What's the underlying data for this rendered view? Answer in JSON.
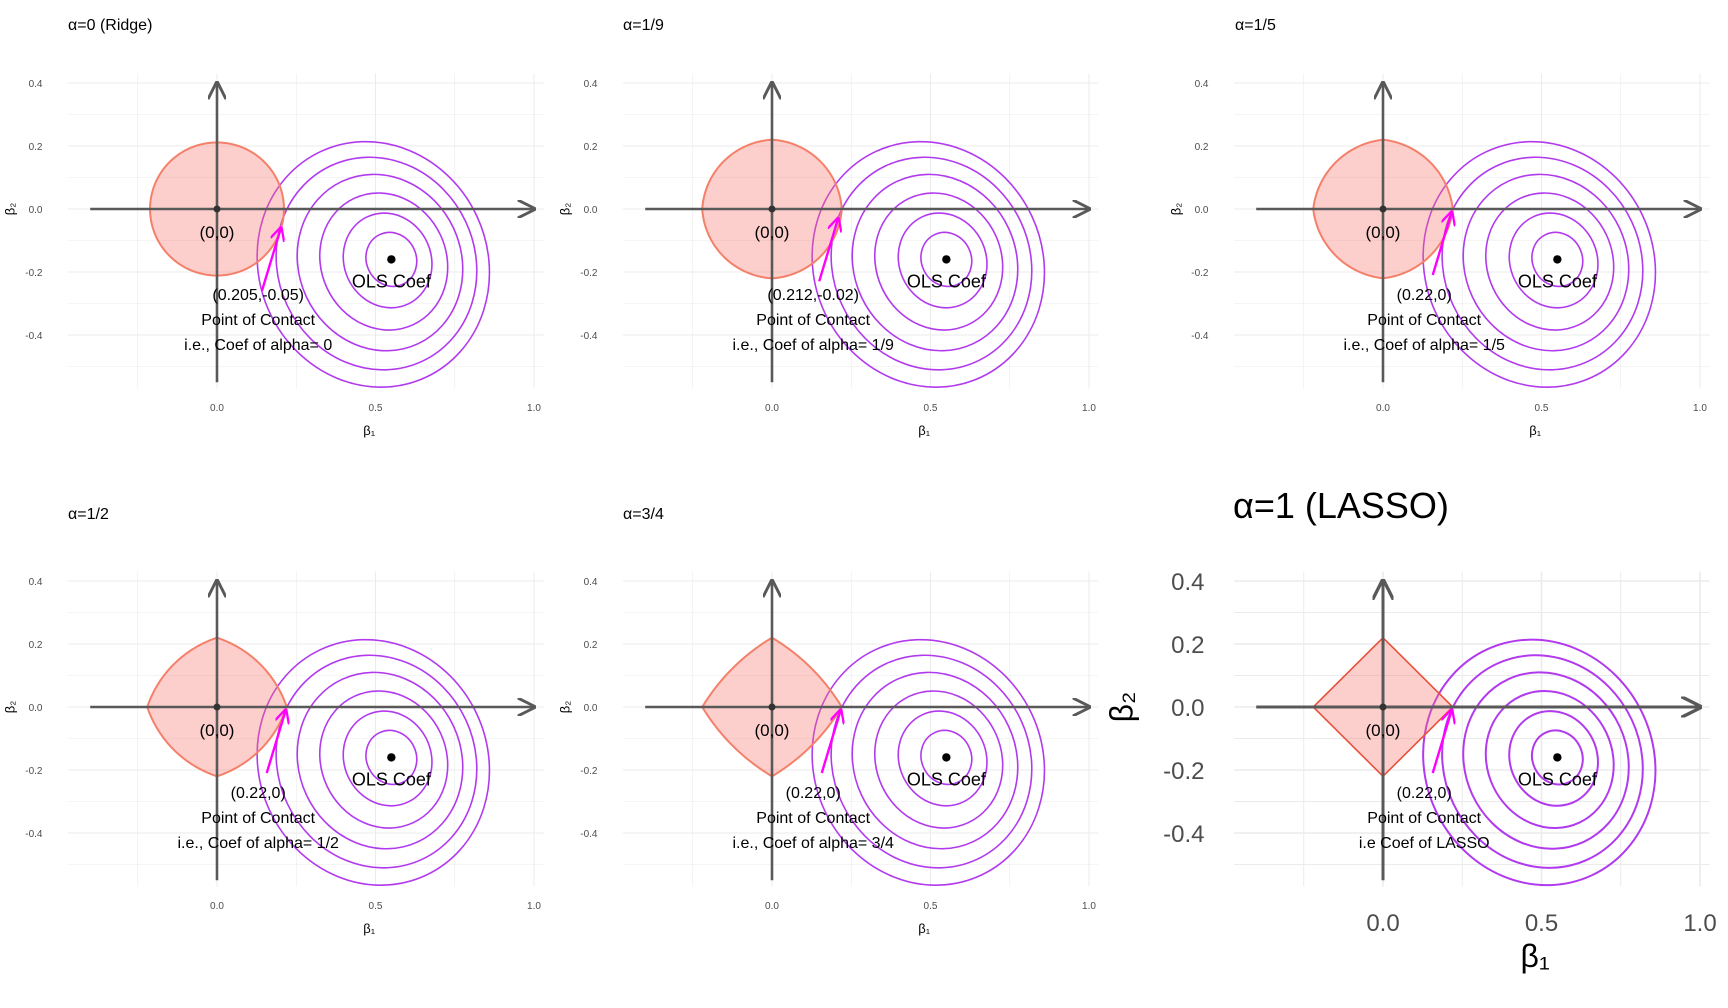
{
  "figure": {
    "background": "#ffffff"
  },
  "colors": {
    "constraint_fill": "#f8766d",
    "constraint_fill_opacity": 0.35,
    "constraint_stroke": "#f4806a",
    "lasso_stroke": "#e8503a",
    "contour_stroke": "#b23aee",
    "arrow": "#ff00ff",
    "axis_arrow": "#595959",
    "grid": "#ebebeb",
    "text": "#000000",
    "tick_text": "#4d4d4d"
  },
  "chart_data": [
    {
      "type": "scatter",
      "title": "α=0 (Ridge)",
      "xlabel": "β₁",
      "ylabel": "β₂",
      "xlim": [
        -0.5,
        1.05
      ],
      "ylim": [
        -0.55,
        0.45
      ],
      "xticks": [
        "0.0",
        "0.5",
        "1.0"
      ],
      "yticks": [
        "0.4",
        "0.2",
        "0.0",
        "-0.2",
        "-0.4"
      ],
      "alpha": 0,
      "origin_label": "(0,0)",
      "ols_point": [
        0.55,
        -0.16
      ],
      "ols_label": "OLS Coef",
      "contact_point": [
        0.205,
        -0.05
      ],
      "annotation": [
        "(0.205,-0.05)",
        "Point of Contact",
        "i.e., Coef of alpha= 0"
      ],
      "grid": true
    },
    {
      "type": "scatter",
      "title": "α=1/9",
      "xlabel": "β₁",
      "ylabel": "β₂",
      "xlim": [
        -0.5,
        1.05
      ],
      "ylim": [
        -0.55,
        0.45
      ],
      "xticks": [
        "0.0",
        "0.5",
        "1.0"
      ],
      "yticks": [
        "0.4",
        "0.2",
        "0.0",
        "-0.2",
        "-0.4"
      ],
      "alpha": 0.1111,
      "origin_label": "(0,0)",
      "ols_point": [
        0.55,
        -0.16
      ],
      "ols_label": "OLS Coef",
      "contact_point": [
        0.212,
        -0.02
      ],
      "annotation": [
        "(0.212,-0.02)",
        "Point of Contact",
        "i.e., Coef of alpha= 1/9"
      ],
      "grid": true
    },
    {
      "type": "scatter",
      "title": "α=1/5",
      "xlabel": "β₁",
      "ylabel": "β₂",
      "xlim": [
        -0.5,
        1.05
      ],
      "ylim": [
        -0.55,
        0.45
      ],
      "xticks": [
        "0.0",
        "0.5",
        "1.0"
      ],
      "yticks": [
        "0.4",
        "0.2",
        "0.0",
        "-0.2",
        "-0.4"
      ],
      "alpha": 0.2,
      "origin_label": "(0,0)",
      "ols_point": [
        0.55,
        -0.16
      ],
      "ols_label": "OLS Coef",
      "contact_point": [
        0.22,
        0
      ],
      "annotation": [
        "(0.22,0)",
        "Point of Contact",
        "i.e., Coef of alpha= 1/5"
      ],
      "grid": true
    },
    {
      "type": "scatter",
      "title": "α=1/2",
      "xlabel": "β₁",
      "ylabel": "β₂",
      "xlim": [
        -0.5,
        1.05
      ],
      "ylim": [
        -0.55,
        0.45
      ],
      "xticks": [
        "0.0",
        "0.5",
        "1.0"
      ],
      "yticks": [
        "0.4",
        "0.2",
        "0.0",
        "-0.2",
        "-0.4"
      ],
      "alpha": 0.5,
      "origin_label": "(0,0)",
      "ols_point": [
        0.55,
        -0.16
      ],
      "ols_label": "OLS Coef",
      "contact_point": [
        0.22,
        0
      ],
      "annotation": [
        "(0.22,0)",
        "Point of Contact",
        "i.e., Coef of alpha= 1/2"
      ],
      "grid": true
    },
    {
      "type": "scatter",
      "title": "α=3/4",
      "xlabel": "β₁",
      "ylabel": "β₂",
      "xlim": [
        -0.5,
        1.05
      ],
      "ylim": [
        -0.55,
        0.45
      ],
      "xticks": [
        "0.0",
        "0.5",
        "1.0"
      ],
      "yticks": [
        "0.4",
        "0.2",
        "0.0",
        "-0.2",
        "-0.4"
      ],
      "alpha": 0.75,
      "origin_label": "(0,0)",
      "ols_point": [
        0.55,
        -0.16
      ],
      "ols_label": "OLS Coef",
      "contact_point": [
        0.22,
        0
      ],
      "annotation": [
        "(0.22,0)",
        "Point of Contact",
        "i.e., Coef of alpha= 3/4"
      ],
      "grid": true
    },
    {
      "type": "scatter",
      "title": "α=1 (LASSO)",
      "xlabel": "β₁",
      "ylabel": "β₂",
      "xlim": [
        -0.5,
        1.05
      ],
      "ylim": [
        -0.55,
        0.45
      ],
      "xticks": [
        "0.0",
        "0.5",
        "1.0"
      ],
      "yticks": [
        "0.4",
        "0.2",
        "0.0",
        "-0.2",
        "-0.4"
      ],
      "alpha": 1,
      "origin_label": "(0,0)",
      "ols_point": [
        0.55,
        -0.16
      ],
      "ols_label": "OLS Coef",
      "contact_point": [
        0.22,
        0
      ],
      "annotation": [
        "(0.22,0)",
        "Point of Contact",
        "i.e Coef of LASSO"
      ],
      "grid": true
    }
  ]
}
